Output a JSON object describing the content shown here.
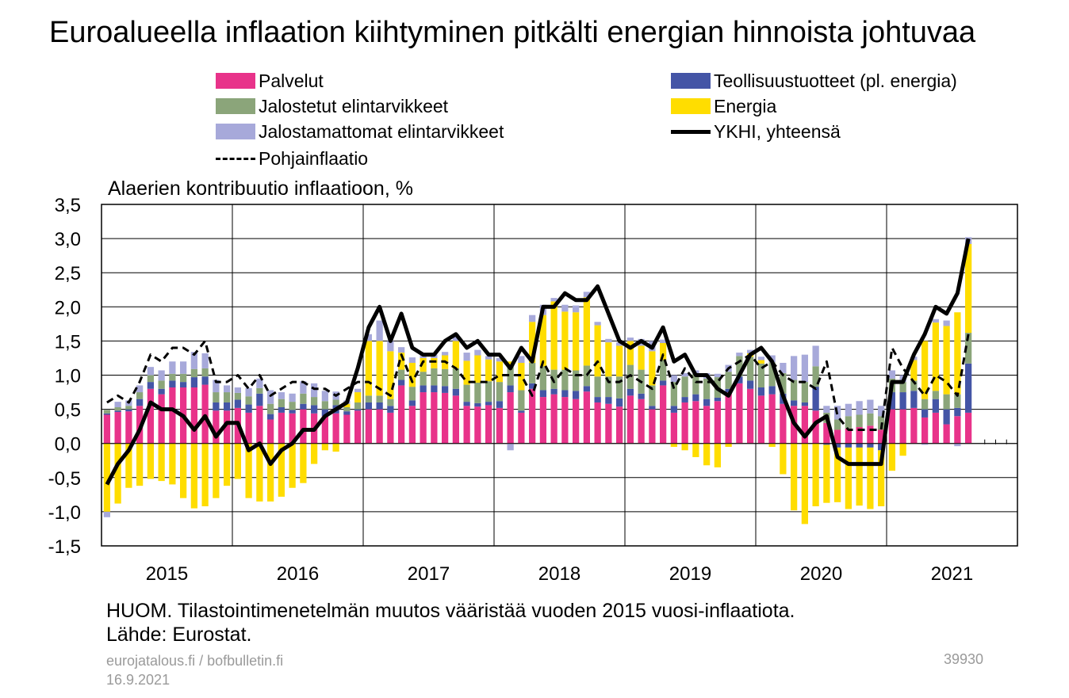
{
  "title": "Euroalueella inflaation kiihtyminen pitkälti energian hinnoista johtuvaa",
  "note": "HUOM. Tilastointimenetelmän muutos vääristää vuoden 2015 vuosi-inflaatiota.",
  "source": "Lähde: Eurostat.",
  "footer": {
    "url": "eurojatalous.fi  / bofbulletin.fi",
    "date": "16.9.2021",
    "id": "39930"
  },
  "colors": {
    "palvelut": "#E8338A",
    "teollisuus": "#4455A6",
    "jalostetut": "#8BA57A",
    "energia": "#FFDD00",
    "jalostamattomat": "#A7A9DA",
    "line": "#000000"
  },
  "legend": [
    {
      "key": "palvelut",
      "label": "Palvelut",
      "kind": "bar"
    },
    {
      "key": "teollisuus",
      "label": "Teollisuustuotteet (pl. energia)",
      "kind": "bar"
    },
    {
      "key": "jalostetut",
      "label": "Jalostetut elintarvikkeet",
      "kind": "bar"
    },
    {
      "key": "energia",
      "label": "Energia",
      "kind": "bar"
    },
    {
      "key": "jalostamattomat",
      "label": "Jalostamattomat elintarvikkeet",
      "kind": "bar"
    },
    {
      "key": "ykhi",
      "label": "YKHI, yhteensä",
      "kind": "solid"
    },
    {
      "key": "pohja",
      "label": "Pohjainflaatio",
      "kind": "dashed"
    }
  ],
  "chart_data": {
    "type": "bar",
    "stacked": true,
    "ylabel": "Alaerien kontribuutio inflaatioon, %",
    "ylim": [
      -1.5,
      3.5
    ],
    "yticks": [
      "-1,5",
      "-1,0",
      "-0,5",
      "0,0",
      "0,5",
      "1,0",
      "1,5",
      "2,0",
      "2,5",
      "3,0",
      "3,5"
    ],
    "x_start": "2015-01",
    "x_end": "2021-12",
    "x_tick_labels": [
      "2015",
      "2016",
      "2017",
      "2018",
      "2019",
      "2020",
      "2021"
    ],
    "grid": true,
    "months": [
      "2015-01",
      "2015-02",
      "2015-03",
      "2015-04",
      "2015-05",
      "2015-06",
      "2015-07",
      "2015-08",
      "2015-09",
      "2015-10",
      "2015-11",
      "2015-12",
      "2016-01",
      "2016-02",
      "2016-03",
      "2016-04",
      "2016-05",
      "2016-06",
      "2016-07",
      "2016-08",
      "2016-09",
      "2016-10",
      "2016-11",
      "2016-12",
      "2017-01",
      "2017-02",
      "2017-03",
      "2017-04",
      "2017-05",
      "2017-06",
      "2017-07",
      "2017-08",
      "2017-09",
      "2017-10",
      "2017-11",
      "2017-12",
      "2018-01",
      "2018-02",
      "2018-03",
      "2018-04",
      "2018-05",
      "2018-06",
      "2018-07",
      "2018-08",
      "2018-09",
      "2018-10",
      "2018-11",
      "2018-12",
      "2019-01",
      "2019-02",
      "2019-03",
      "2019-04",
      "2019-05",
      "2019-06",
      "2019-07",
      "2019-08",
      "2019-09",
      "2019-10",
      "2019-11",
      "2019-12",
      "2020-01",
      "2020-02",
      "2020-03",
      "2020-04",
      "2020-05",
      "2020-06",
      "2020-07",
      "2020-08",
      "2020-09",
      "2020-10",
      "2020-11",
      "2020-12",
      "2021-01",
      "2021-02",
      "2021-03",
      "2021-04",
      "2021-05",
      "2021-06",
      "2021-07",
      "2021-08"
    ],
    "series": [
      {
        "name": "Palvelut",
        "key": "palvelut",
        "values": [
          0.42,
          0.46,
          0.47,
          0.55,
          0.8,
          0.72,
          0.82,
          0.82,
          0.82,
          0.86,
          0.48,
          0.48,
          0.52,
          0.45,
          0.55,
          0.35,
          0.45,
          0.44,
          0.5,
          0.44,
          0.4,
          0.44,
          0.42,
          0.48,
          0.5,
          0.5,
          0.45,
          0.85,
          0.55,
          0.75,
          0.75,
          0.74,
          0.7,
          0.55,
          0.54,
          0.56,
          0.52,
          0.75,
          0.45,
          0.8,
          0.68,
          0.72,
          0.68,
          0.65,
          0.76,
          0.6,
          0.58,
          0.54,
          0.7,
          0.65,
          0.5,
          0.85,
          0.45,
          0.6,
          0.62,
          0.55,
          0.62,
          0.75,
          0.88,
          0.8,
          0.7,
          0.72,
          0.58,
          0.55,
          0.55,
          0.48,
          0.3,
          0.2,
          0.22,
          0.24,
          0.26,
          0.2,
          0.5,
          0.5,
          0.52,
          0.38,
          0.45,
          0.28,
          0.4,
          0.45
        ]
      },
      {
        "name": "Teollisuustuotteet (pl. energia)",
        "key": "teollisuus",
        "values": [
          0.02,
          0.02,
          0.03,
          0.1,
          0.1,
          0.08,
          0.1,
          0.08,
          0.15,
          0.12,
          0.12,
          0.12,
          0.12,
          0.12,
          0.18,
          0.08,
          0.08,
          0.05,
          0.08,
          0.12,
          0.1,
          0.12,
          0.05,
          0.02,
          0.1,
          0.1,
          0.1,
          0.08,
          0.08,
          0.1,
          0.1,
          0.1,
          0.1,
          0.06,
          0.05,
          0.05,
          0.1,
          0.1,
          0.03,
          0.08,
          0.1,
          0.08,
          0.1,
          0.12,
          0.08,
          0.08,
          0.1,
          0.12,
          0.1,
          0.08,
          0.05,
          0.07,
          0.1,
          0.08,
          0.1,
          0.1,
          0.05,
          0.05,
          0.1,
          0.12,
          0.12,
          0.12,
          0.15,
          0.08,
          0.05,
          0.35,
          -0.02,
          -0.06,
          -0.06,
          -0.06,
          -0.06,
          -0.1,
          0.25,
          0.25,
          0.25,
          0.12,
          0.2,
          0.22,
          0.12,
          0.72
        ]
      },
      {
        "name": "Jalostetut elintarvikkeet",
        "key": "jalostetut",
        "values": [
          0.05,
          0.05,
          0.05,
          0.1,
          0.1,
          0.12,
          0.1,
          0.12,
          0.12,
          0.12,
          0.15,
          0.15,
          0.1,
          0.12,
          0.08,
          0.15,
          0.12,
          0.12,
          0.15,
          0.12,
          0.12,
          0.08,
          0.06,
          0.1,
          0.1,
          0.1,
          0.1,
          0.15,
          0.2,
          0.2,
          0.25,
          0.25,
          0.3,
          0.25,
          0.3,
          0.3,
          0.28,
          0.3,
          0.3,
          0.3,
          0.35,
          0.28,
          0.3,
          0.3,
          0.3,
          0.3,
          0.3,
          0.32,
          0.35,
          0.35,
          0.3,
          0.3,
          0.35,
          0.3,
          0.3,
          0.3,
          0.3,
          0.25,
          0.3,
          0.35,
          0.35,
          0.35,
          0.3,
          0.3,
          0.3,
          0.3,
          0.15,
          0.15,
          0.18,
          0.18,
          0.18,
          0.2,
          0.2,
          0.15,
          0.15,
          0.15,
          0.12,
          0.22,
          0.2,
          0.45
        ]
      },
      {
        "name": "Energia",
        "key": "energia",
        "values": [
          -1.0,
          -0.88,
          -0.65,
          -0.62,
          -0.52,
          -0.55,
          -0.6,
          -0.8,
          -0.95,
          -0.92,
          -0.8,
          -0.62,
          -0.52,
          -0.8,
          -0.85,
          -0.85,
          -0.78,
          -0.65,
          -0.58,
          -0.3,
          -0.1,
          -0.12,
          0.05,
          0.15,
          0.8,
          0.8,
          0.7,
          0.25,
          0.35,
          0.2,
          0.15,
          0.2,
          0.4,
          0.35,
          0.4,
          0.32,
          0.3,
          0.05,
          0.4,
          0.6,
          0.75,
          1.0,
          0.85,
          0.85,
          1.0,
          0.75,
          0.5,
          0.45,
          0.35,
          0.35,
          0.5,
          0.25,
          -0.05,
          -0.1,
          -0.2,
          -0.32,
          -0.35,
          -0.05,
          0.0,
          0.05,
          0.05,
          -0.05,
          -0.45,
          -0.98,
          -1.18,
          -0.92,
          -0.85,
          -0.8,
          -0.9,
          -0.85,
          -0.9,
          -0.82,
          -0.4,
          -0.18,
          0.3,
          0.85,
          1.0,
          1.0,
          1.2,
          1.3
        ]
      },
      {
        "name": "Jalostamattomat elintarvikkeet",
        "key": "jalostamattomat",
        "values": [
          -0.08,
          0.08,
          0.08,
          0.1,
          0.12,
          0.15,
          0.18,
          0.18,
          0.25,
          0.22,
          0.18,
          0.1,
          0.08,
          0.12,
          0.14,
          0.2,
          0.1,
          0.12,
          0.18,
          0.2,
          0.15,
          0.12,
          0.05,
          0.05,
          0.1,
          0.3,
          0.15,
          0.08,
          0.08,
          0.05,
          0.05,
          0.05,
          0.1,
          0.12,
          0.08,
          0.05,
          0.05,
          -0.1,
          0.1,
          0.1,
          0.15,
          0.05,
          0.1,
          0.1,
          0.08,
          0.05,
          0.05,
          0.05,
          0.05,
          0.1,
          0.15,
          0.05,
          0.1,
          0.05,
          0.05,
          0.08,
          0.05,
          0.1,
          0.05,
          0.05,
          0.05,
          0.1,
          0.15,
          0.35,
          0.4,
          0.3,
          0.1,
          0.2,
          0.18,
          0.2,
          0.2,
          0.15,
          0.12,
          0.1,
          0.05,
          -0.02,
          0.05,
          0.08,
          -0.04,
          0.1
        ]
      }
    ],
    "lines": [
      {
        "name": "YKHI, yhteensä",
        "key": "ykhi",
        "style": "solid",
        "values": [
          -0.6,
          -0.3,
          -0.1,
          0.2,
          0.6,
          0.5,
          0.5,
          0.4,
          0.2,
          0.4,
          0.1,
          0.3,
          0.3,
          -0.1,
          0.0,
          -0.3,
          -0.1,
          0.0,
          0.2,
          0.2,
          0.4,
          0.5,
          0.6,
          1.1,
          1.7,
          2.0,
          1.5,
          1.9,
          1.4,
          1.3,
          1.3,
          1.5,
          1.6,
          1.4,
          1.5,
          1.3,
          1.3,
          1.1,
          1.4,
          1.2,
          2.0,
          2.0,
          2.2,
          2.1,
          2.1,
          2.3,
          1.9,
          1.5,
          1.4,
          1.5,
          1.4,
          1.7,
          1.2,
          1.3,
          1.0,
          1.0,
          0.8,
          0.7,
          1.0,
          1.3,
          1.4,
          1.2,
          0.7,
          0.3,
          0.1,
          0.3,
          0.4,
          -0.2,
          -0.3,
          -0.3,
          -0.3,
          -0.3,
          0.9,
          0.9,
          1.3,
          1.6,
          2.0,
          1.9,
          2.2,
          3.0
        ]
      },
      {
        "name": "Pohjainflaatio",
        "key": "pohja",
        "style": "dashed",
        "values": [
          0.6,
          0.7,
          0.6,
          0.9,
          1.3,
          1.2,
          1.4,
          1.4,
          1.3,
          1.5,
          0.9,
          0.9,
          1.0,
          0.8,
          1.0,
          0.7,
          0.8,
          0.9,
          0.9,
          0.8,
          0.8,
          0.7,
          0.8,
          0.9,
          0.9,
          0.8,
          0.7,
          1.3,
          0.9,
          1.2,
          1.2,
          1.2,
          1.1,
          0.9,
          0.9,
          0.9,
          1.0,
          1.0,
          1.0,
          0.7,
          1.2,
          0.9,
          1.1,
          1.0,
          1.0,
          1.2,
          0.9,
          0.9,
          1.0,
          0.9,
          0.8,
          1.3,
          0.8,
          1.1,
          0.9,
          0.9,
          0.9,
          1.1,
          1.2,
          1.3,
          1.1,
          1.2,
          1.0,
          0.9,
          0.9,
          0.8,
          1.2,
          0.4,
          0.2,
          0.2,
          0.2,
          0.2,
          1.4,
          1.1,
          0.9,
          0.7,
          1.0,
          0.9,
          0.7,
          1.6
        ]
      }
    ]
  }
}
